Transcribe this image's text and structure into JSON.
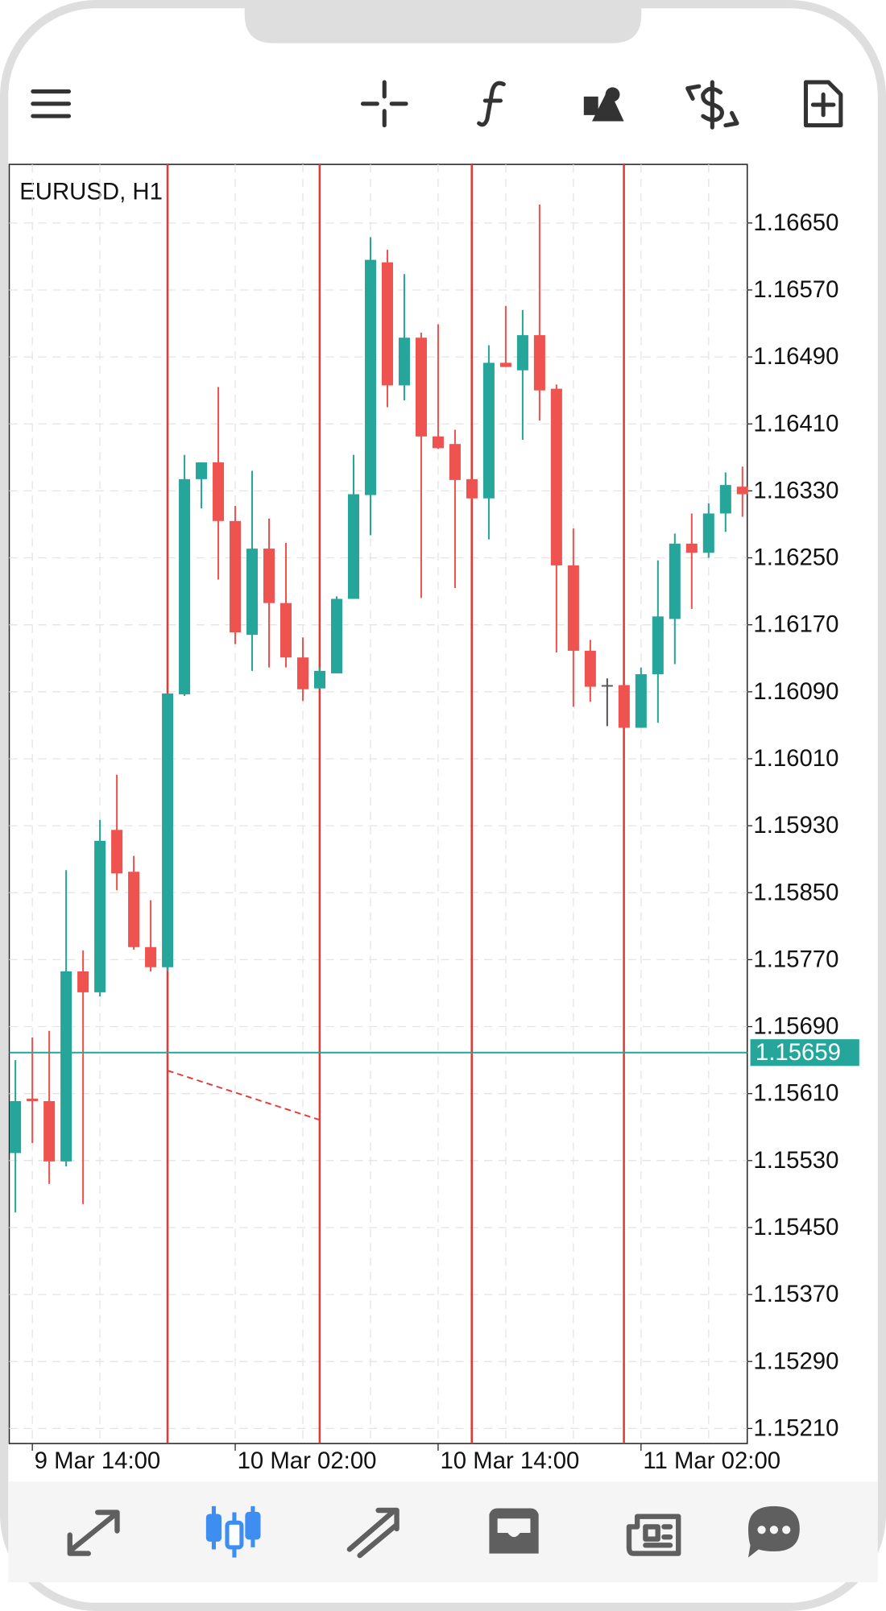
{
  "chart_data": {
    "type": "candlestick",
    "title": "EURUSD, H1",
    "categories": [
      null,
      "9 Mar 14:00",
      null,
      null,
      null,
      null,
      null,
      null,
      null,
      null,
      null,
      null,
      null,
      "10 Mar 02:00",
      null,
      null,
      null,
      null,
      null,
      null,
      null,
      null,
      null,
      null,
      null,
      "10 Mar 14:00",
      null,
      null,
      null,
      null,
      null,
      null,
      null,
      null,
      null,
      null,
      null,
      "11 Mar 02:00",
      null,
      null,
      null,
      null,
      null,
      null
    ],
    "open": [
      1.15539,
      1.15604,
      1.15601,
      1.15529,
      1.15756,
      1.15731,
      1.15925,
      1.15875,
      1.15785,
      1.15761,
      1.16087,
      1.16344,
      1.16364,
      1.16294,
      1.16158,
      1.16261,
      1.16196,
      1.16131,
      1.16094,
      1.16112,
      1.16201,
      1.16325,
      1.16603,
      1.16456,
      1.16513,
      1.16395,
      1.16386,
      1.16344,
      1.16321,
      1.16483,
      1.16474,
      1.16516,
      1.16452,
      1.16241,
      1.16139,
      1.16098,
      1.16098,
      1.16047,
      1.16111,
      1.16177,
      1.16267,
      1.16256,
      1.16303,
      1.16335
    ],
    "high": [
      1.1565,
      1.15677,
      1.15685,
      1.15877,
      1.15781,
      1.15937,
      1.15991,
      1.15894,
      1.15841,
      1.16088,
      1.16373,
      1.16364,
      1.16454,
      1.16312,
      1.16354,
      1.16297,
      1.16268,
      1.16155,
      1.16119,
      1.16204,
      1.16373,
      1.16633,
      1.16618,
      1.16589,
      1.16519,
      1.16529,
      1.16403,
      1.16344,
      1.16504,
      1.16551,
      1.16546,
      1.16672,
      1.16457,
      1.16285,
      1.16152,
      1.16106,
      1.16098,
      1.16119,
      1.16247,
      1.16279,
      1.16303,
      1.16315,
      1.16352,
      1.16359
    ],
    "low": [
      1.15468,
      1.15551,
      1.15502,
      1.15523,
      1.15478,
      1.15726,
      1.15853,
      1.15782,
      1.15756,
      1.15756,
      1.16085,
      1.16309,
      1.16224,
      1.16147,
      1.16115,
      1.16119,
      1.16119,
      1.16079,
      1.16094,
      1.16112,
      1.16201,
      1.16277,
      1.1643,
      1.16438,
      1.16202,
      1.1638,
      1.16214,
      1.1632,
      1.16272,
      1.16478,
      1.16391,
      1.16414,
      1.16137,
      1.16072,
      1.16078,
      1.16049,
      1.16047,
      1.16047,
      1.16053,
      1.16123,
      1.16189,
      1.1625,
      1.16281,
      1.16299
    ],
    "close": [
      1.15601,
      1.15601,
      1.15529,
      1.15756,
      1.15731,
      1.15912,
      1.15873,
      1.15785,
      1.15761,
      1.16088,
      1.16344,
      1.16364,
      1.16294,
      1.16161,
      1.16261,
      1.16196,
      1.16131,
      1.16093,
      1.16115,
      1.16201,
      1.16326,
      1.16606,
      1.16456,
      1.16513,
      1.16395,
      1.16381,
      1.16343,
      1.16321,
      1.16483,
      1.16478,
      1.16516,
      1.1645,
      1.16241,
      1.16139,
      1.16096,
      1.16098,
      1.16047,
      1.16111,
      1.1618,
      1.16267,
      1.16256,
      1.16303,
      1.16337,
      1.16326
    ],
    "up_color": "#26a69a",
    "down_color": "#ef5350",
    "doji_color": "#555555",
    "current_price": 1.15659,
    "current_price_color": "#26a69a",
    "ylim": [
      1.15192,
      1.1672
    ],
    "yticks": [
      {
        "value": 1.1665,
        "label": "1.16650"
      },
      {
        "value": 1.1657,
        "label": "1.16570"
      },
      {
        "value": 1.1649,
        "label": "1.16490"
      },
      {
        "value": 1.1641,
        "label": "1.16410"
      },
      {
        "value": 1.1633,
        "label": "1.16330"
      },
      {
        "value": 1.1625,
        "label": "1.16250"
      },
      {
        "value": 1.1617,
        "label": "1.16170"
      },
      {
        "value": 1.1609,
        "label": "1.16090"
      },
      {
        "value": 1.1601,
        "label": "1.16010"
      },
      {
        "value": 1.1593,
        "label": "1.15930"
      },
      {
        "value": 1.1585,
        "label": "1.15850"
      },
      {
        "value": 1.1577,
        "label": "1.15770"
      },
      {
        "value": 1.1569,
        "label": "1.15690"
      },
      {
        "value": 1.1561,
        "label": "1.15610"
      },
      {
        "value": 1.1553,
        "label": "1.15530"
      },
      {
        "value": 1.1545,
        "label": "1.15450"
      },
      {
        "value": 1.1537,
        "label": "1.15370"
      },
      {
        "value": 1.1529,
        "label": "1.15290"
      },
      {
        "value": 1.1521,
        "label": "1.15210"
      }
    ],
    "grid": true
  }
}
